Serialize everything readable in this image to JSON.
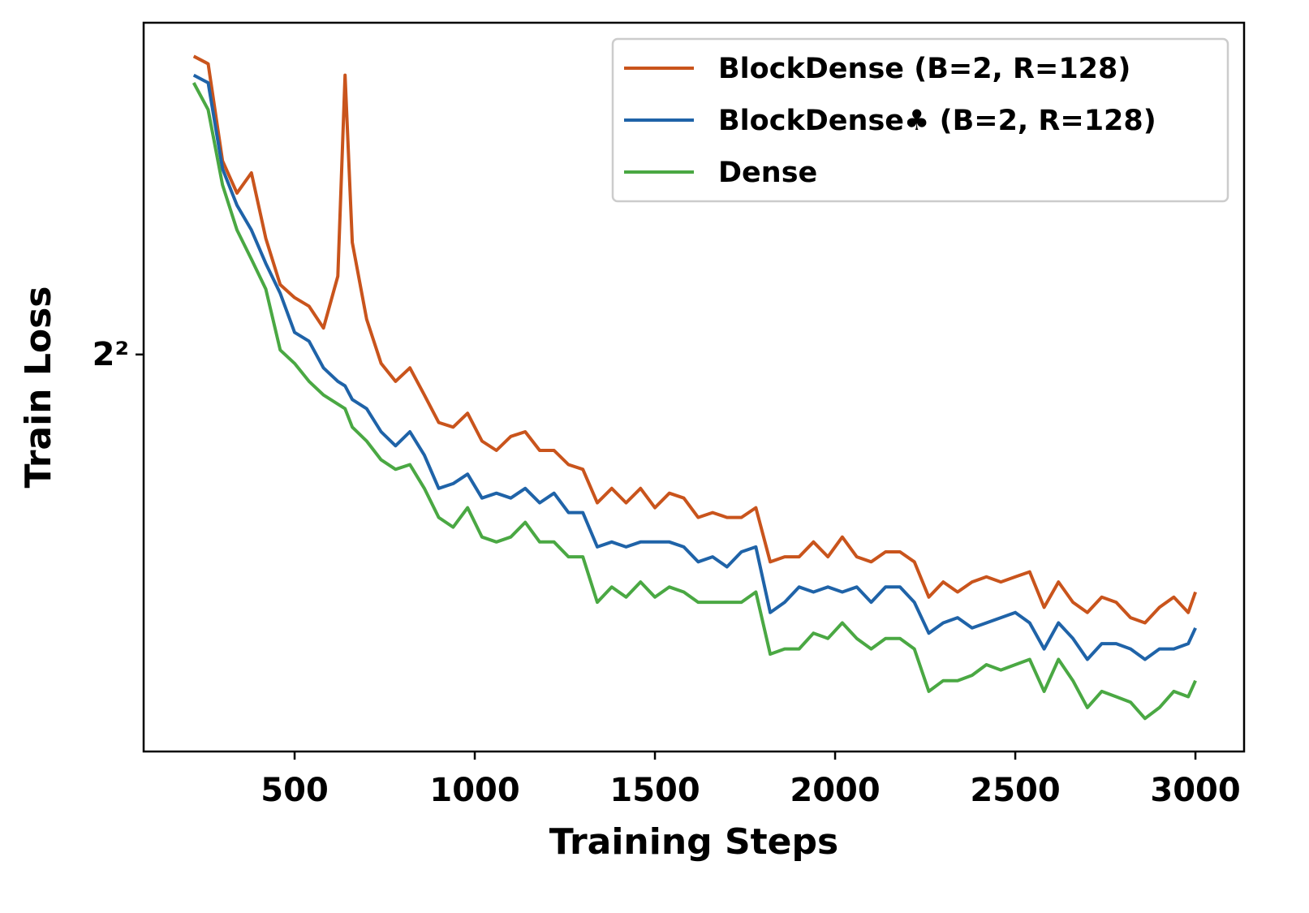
{
  "chart_data": {
    "type": "line",
    "xlabel": "Training Steps",
    "ylabel": "Train Loss",
    "yscale": "log",
    "legend": "upper right",
    "xlim": [
      81,
      3135
    ],
    "ylim": [
      3.2,
      4.82
    ],
    "xticks": [
      500,
      1000,
      1500,
      2000,
      2500,
      3000
    ],
    "yticks": [
      {
        "value": 4,
        "label": "2²"
      }
    ],
    "x": [
      220,
      260,
      300,
      340,
      380,
      420,
      460,
      500,
      540,
      580,
      620,
      640,
      660,
      700,
      740,
      780,
      820,
      860,
      900,
      940,
      980,
      1020,
      1060,
      1100,
      1140,
      1180,
      1220,
      1260,
      1300,
      1340,
      1380,
      1420,
      1460,
      1500,
      1540,
      1580,
      1620,
      1660,
      1700,
      1740,
      1780,
      1820,
      1860,
      1900,
      1940,
      1980,
      2020,
      2060,
      2100,
      2140,
      2180,
      2220,
      2260,
      2300,
      2340,
      2380,
      2420,
      2460,
      2500,
      2540,
      2580,
      2620,
      2660,
      2700,
      2740,
      2780,
      2820,
      2860,
      2900,
      2940,
      2980,
      3000
    ],
    "series": [
      {
        "name": "BlockDense (B=2, R=128)",
        "color": "#c9541c",
        "values": [
          4.73,
          4.71,
          4.46,
          4.38,
          4.43,
          4.27,
          4.16,
          4.13,
          4.11,
          4.06,
          4.18,
          4.68,
          4.26,
          4.08,
          3.98,
          3.94,
          3.97,
          3.91,
          3.85,
          3.84,
          3.87,
          3.81,
          3.79,
          3.82,
          3.83,
          3.79,
          3.79,
          3.76,
          3.75,
          3.68,
          3.71,
          3.68,
          3.71,
          3.67,
          3.7,
          3.69,
          3.65,
          3.66,
          3.65,
          3.65,
          3.67,
          3.56,
          3.57,
          3.57,
          3.6,
          3.57,
          3.61,
          3.57,
          3.56,
          3.58,
          3.58,
          3.56,
          3.49,
          3.52,
          3.5,
          3.52,
          3.53,
          3.52,
          3.53,
          3.54,
          3.47,
          3.52,
          3.48,
          3.46,
          3.49,
          3.48,
          3.45,
          3.44,
          3.47,
          3.49,
          3.46,
          3.5
        ]
      },
      {
        "name": "BlockDense♣ (B=2, R=128)",
        "color": "#1f63a8",
        "values": [
          4.68,
          4.66,
          4.44,
          4.35,
          4.29,
          4.21,
          4.14,
          4.05,
          4.03,
          3.97,
          3.94,
          3.93,
          3.9,
          3.88,
          3.83,
          3.8,
          3.83,
          3.78,
          3.71,
          3.72,
          3.74,
          3.69,
          3.7,
          3.69,
          3.71,
          3.68,
          3.7,
          3.66,
          3.66,
          3.59,
          3.6,
          3.59,
          3.6,
          3.6,
          3.6,
          3.59,
          3.56,
          3.57,
          3.55,
          3.58,
          3.59,
          3.46,
          3.48,
          3.51,
          3.5,
          3.51,
          3.5,
          3.51,
          3.48,
          3.51,
          3.51,
          3.48,
          3.42,
          3.44,
          3.45,
          3.43,
          3.44,
          3.45,
          3.46,
          3.44,
          3.39,
          3.44,
          3.41,
          3.37,
          3.4,
          3.4,
          3.39,
          3.37,
          3.39,
          3.39,
          3.4,
          3.43
        ]
      },
      {
        "name": "Dense",
        "color": "#4aa843",
        "values": [
          4.66,
          4.59,
          4.4,
          4.29,
          4.22,
          4.15,
          4.01,
          3.98,
          3.94,
          3.91,
          3.89,
          3.88,
          3.84,
          3.81,
          3.77,
          3.75,
          3.76,
          3.71,
          3.65,
          3.63,
          3.67,
          3.61,
          3.6,
          3.61,
          3.64,
          3.6,
          3.6,
          3.57,
          3.57,
          3.48,
          3.51,
          3.49,
          3.52,
          3.49,
          3.51,
          3.5,
          3.48,
          3.48,
          3.48,
          3.48,
          3.5,
          3.38,
          3.39,
          3.39,
          3.42,
          3.41,
          3.44,
          3.41,
          3.39,
          3.41,
          3.41,
          3.39,
          3.31,
          3.33,
          3.33,
          3.34,
          3.36,
          3.35,
          3.36,
          3.37,
          3.31,
          3.37,
          3.33,
          3.28,
          3.31,
          3.3,
          3.29,
          3.26,
          3.28,
          3.31,
          3.3,
          3.33
        ]
      }
    ]
  }
}
